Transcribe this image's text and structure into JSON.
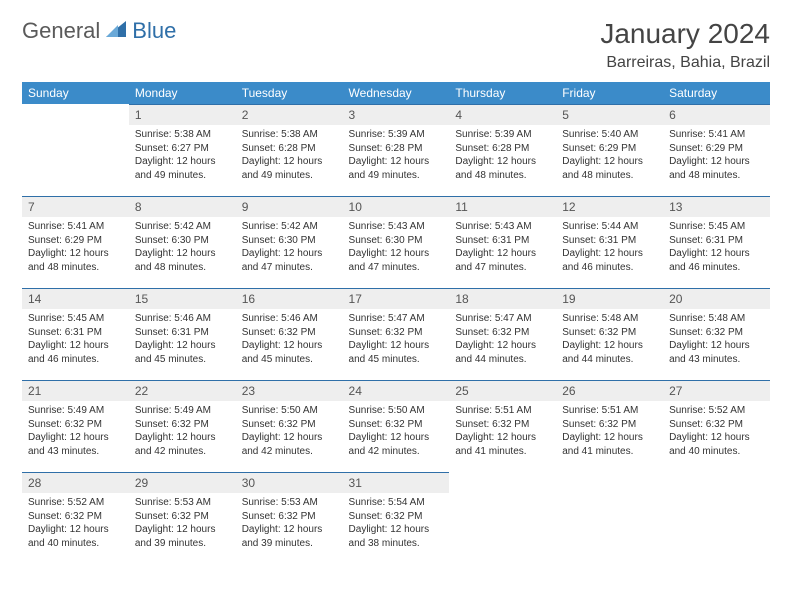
{
  "header": {
    "logo_part1": "General",
    "logo_part2": "Blue",
    "month_title": "January 2024",
    "location": "Barreiras, Bahia, Brazil"
  },
  "calendar": {
    "weekday_header_bg": "#3b8bc9",
    "weekday_header_fg": "#ffffff",
    "daynum_bg": "#eeeeee",
    "row_border_color": "#2f6fa8",
    "weekdays": [
      "Sunday",
      "Monday",
      "Tuesday",
      "Wednesday",
      "Thursday",
      "Friday",
      "Saturday"
    ],
    "weeks": [
      [
        {
          "empty": true
        },
        {
          "num": "1",
          "sunrise": "Sunrise: 5:38 AM",
          "sunset": "Sunset: 6:27 PM",
          "daylight": "Daylight: 12 hours and 49 minutes."
        },
        {
          "num": "2",
          "sunrise": "Sunrise: 5:38 AM",
          "sunset": "Sunset: 6:28 PM",
          "daylight": "Daylight: 12 hours and 49 minutes."
        },
        {
          "num": "3",
          "sunrise": "Sunrise: 5:39 AM",
          "sunset": "Sunset: 6:28 PM",
          "daylight": "Daylight: 12 hours and 49 minutes."
        },
        {
          "num": "4",
          "sunrise": "Sunrise: 5:39 AM",
          "sunset": "Sunset: 6:28 PM",
          "daylight": "Daylight: 12 hours and 48 minutes."
        },
        {
          "num": "5",
          "sunrise": "Sunrise: 5:40 AM",
          "sunset": "Sunset: 6:29 PM",
          "daylight": "Daylight: 12 hours and 48 minutes."
        },
        {
          "num": "6",
          "sunrise": "Sunrise: 5:41 AM",
          "sunset": "Sunset: 6:29 PM",
          "daylight": "Daylight: 12 hours and 48 minutes."
        }
      ],
      [
        {
          "num": "7",
          "sunrise": "Sunrise: 5:41 AM",
          "sunset": "Sunset: 6:29 PM",
          "daylight": "Daylight: 12 hours and 48 minutes."
        },
        {
          "num": "8",
          "sunrise": "Sunrise: 5:42 AM",
          "sunset": "Sunset: 6:30 PM",
          "daylight": "Daylight: 12 hours and 48 minutes."
        },
        {
          "num": "9",
          "sunrise": "Sunrise: 5:42 AM",
          "sunset": "Sunset: 6:30 PM",
          "daylight": "Daylight: 12 hours and 47 minutes."
        },
        {
          "num": "10",
          "sunrise": "Sunrise: 5:43 AM",
          "sunset": "Sunset: 6:30 PM",
          "daylight": "Daylight: 12 hours and 47 minutes."
        },
        {
          "num": "11",
          "sunrise": "Sunrise: 5:43 AM",
          "sunset": "Sunset: 6:31 PM",
          "daylight": "Daylight: 12 hours and 47 minutes."
        },
        {
          "num": "12",
          "sunrise": "Sunrise: 5:44 AM",
          "sunset": "Sunset: 6:31 PM",
          "daylight": "Daylight: 12 hours and 46 minutes."
        },
        {
          "num": "13",
          "sunrise": "Sunrise: 5:45 AM",
          "sunset": "Sunset: 6:31 PM",
          "daylight": "Daylight: 12 hours and 46 minutes."
        }
      ],
      [
        {
          "num": "14",
          "sunrise": "Sunrise: 5:45 AM",
          "sunset": "Sunset: 6:31 PM",
          "daylight": "Daylight: 12 hours and 46 minutes."
        },
        {
          "num": "15",
          "sunrise": "Sunrise: 5:46 AM",
          "sunset": "Sunset: 6:31 PM",
          "daylight": "Daylight: 12 hours and 45 minutes."
        },
        {
          "num": "16",
          "sunrise": "Sunrise: 5:46 AM",
          "sunset": "Sunset: 6:32 PM",
          "daylight": "Daylight: 12 hours and 45 minutes."
        },
        {
          "num": "17",
          "sunrise": "Sunrise: 5:47 AM",
          "sunset": "Sunset: 6:32 PM",
          "daylight": "Daylight: 12 hours and 45 minutes."
        },
        {
          "num": "18",
          "sunrise": "Sunrise: 5:47 AM",
          "sunset": "Sunset: 6:32 PM",
          "daylight": "Daylight: 12 hours and 44 minutes."
        },
        {
          "num": "19",
          "sunrise": "Sunrise: 5:48 AM",
          "sunset": "Sunset: 6:32 PM",
          "daylight": "Daylight: 12 hours and 44 minutes."
        },
        {
          "num": "20",
          "sunrise": "Sunrise: 5:48 AM",
          "sunset": "Sunset: 6:32 PM",
          "daylight": "Daylight: 12 hours and 43 minutes."
        }
      ],
      [
        {
          "num": "21",
          "sunrise": "Sunrise: 5:49 AM",
          "sunset": "Sunset: 6:32 PM",
          "daylight": "Daylight: 12 hours and 43 minutes."
        },
        {
          "num": "22",
          "sunrise": "Sunrise: 5:49 AM",
          "sunset": "Sunset: 6:32 PM",
          "daylight": "Daylight: 12 hours and 42 minutes."
        },
        {
          "num": "23",
          "sunrise": "Sunrise: 5:50 AM",
          "sunset": "Sunset: 6:32 PM",
          "daylight": "Daylight: 12 hours and 42 minutes."
        },
        {
          "num": "24",
          "sunrise": "Sunrise: 5:50 AM",
          "sunset": "Sunset: 6:32 PM",
          "daylight": "Daylight: 12 hours and 42 minutes."
        },
        {
          "num": "25",
          "sunrise": "Sunrise: 5:51 AM",
          "sunset": "Sunset: 6:32 PM",
          "daylight": "Daylight: 12 hours and 41 minutes."
        },
        {
          "num": "26",
          "sunrise": "Sunrise: 5:51 AM",
          "sunset": "Sunset: 6:32 PM",
          "daylight": "Daylight: 12 hours and 41 minutes."
        },
        {
          "num": "27",
          "sunrise": "Sunrise: 5:52 AM",
          "sunset": "Sunset: 6:32 PM",
          "daylight": "Daylight: 12 hours and 40 minutes."
        }
      ],
      [
        {
          "num": "28",
          "sunrise": "Sunrise: 5:52 AM",
          "sunset": "Sunset: 6:32 PM",
          "daylight": "Daylight: 12 hours and 40 minutes."
        },
        {
          "num": "29",
          "sunrise": "Sunrise: 5:53 AM",
          "sunset": "Sunset: 6:32 PM",
          "daylight": "Daylight: 12 hours and 39 minutes."
        },
        {
          "num": "30",
          "sunrise": "Sunrise: 5:53 AM",
          "sunset": "Sunset: 6:32 PM",
          "daylight": "Daylight: 12 hours and 39 minutes."
        },
        {
          "num": "31",
          "sunrise": "Sunrise: 5:54 AM",
          "sunset": "Sunset: 6:32 PM",
          "daylight": "Daylight: 12 hours and 38 minutes."
        },
        {
          "empty": true
        },
        {
          "empty": true
        },
        {
          "empty": true
        }
      ]
    ]
  }
}
